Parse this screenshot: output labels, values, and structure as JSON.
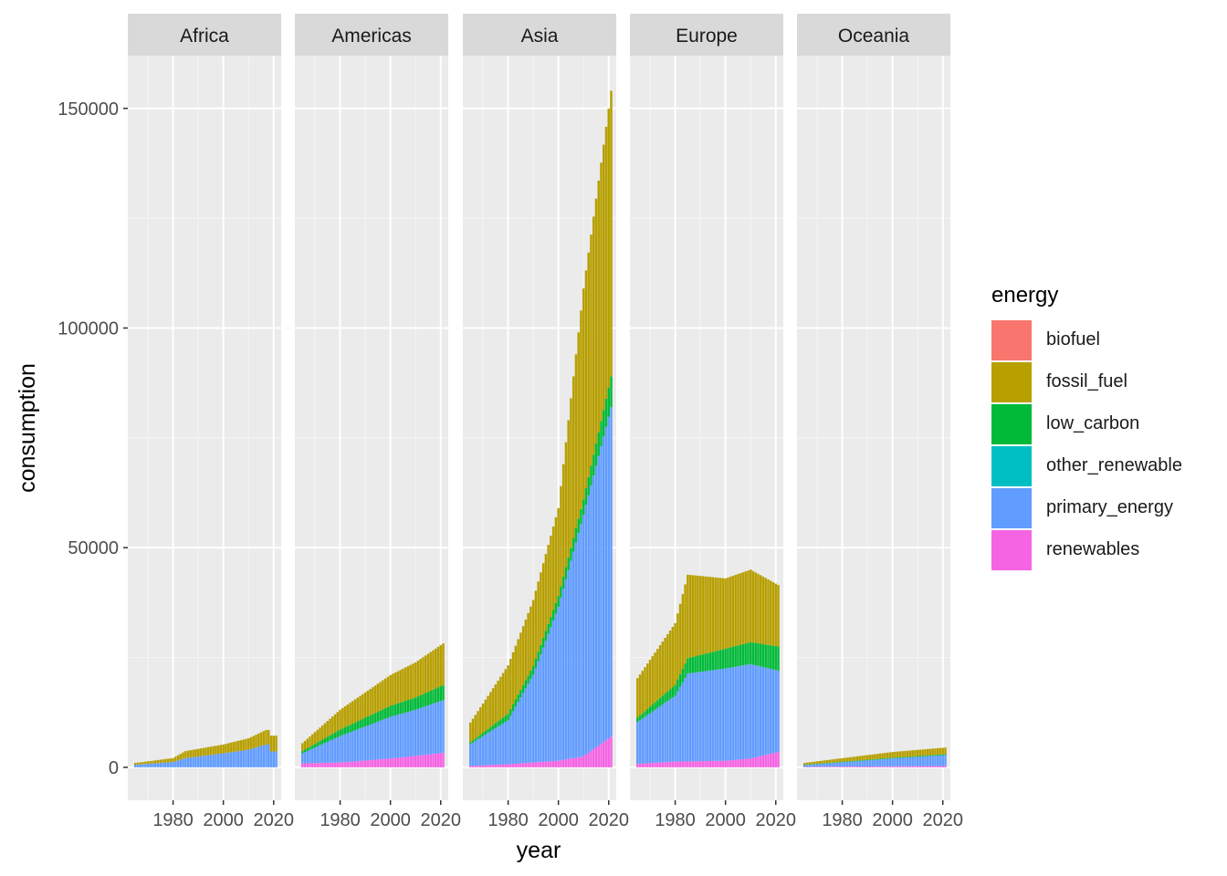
{
  "chart_data": {
    "type": "bar",
    "stacked": true,
    "faceted": true,
    "xlabel": "year",
    "ylabel": "consumption",
    "xticks": [
      1980,
      2000,
      2020
    ],
    "yticks": [
      0,
      50000,
      100000,
      150000
    ],
    "ylim": [
      -7500,
      162000
    ],
    "xlim": [
      1962,
      2023
    ],
    "year_range": [
      1965,
      2021
    ],
    "grid": true,
    "legend": {
      "title": "energy",
      "position": "right",
      "entries": [
        {
          "name": "biofuel",
          "color": "#F8766D"
        },
        {
          "name": "fossil_fuel",
          "color": "#B79F00"
        },
        {
          "name": "low_carbon",
          "color": "#00BA38"
        },
        {
          "name": "other_renewable",
          "color": "#00BFC4"
        },
        {
          "name": "primary_energy",
          "color": "#619CFF"
        },
        {
          "name": "renewables",
          "color": "#F564E3"
        }
      ]
    },
    "panels": [
      {
        "title": "Africa",
        "series": {
          "renewables": [
            [
              1965,
              0
            ],
            [
              2021,
              0
            ]
          ],
          "primary_energy": [
            [
              1965,
              600
            ],
            [
              1980,
              1200
            ],
            [
              1985,
              2100
            ],
            [
              2000,
              3200
            ],
            [
              2010,
              4000
            ],
            [
              2017,
              5200
            ],
            [
              2018,
              5200
            ],
            [
              2019,
              3600
            ],
            [
              2021,
              3600
            ]
          ],
          "low_carbon": [
            [
              1965,
              0
            ],
            [
              2021,
              0
            ]
          ],
          "fossil_fuel": [
            [
              1965,
              400
            ],
            [
              1980,
              900
            ],
            [
              1985,
              1600
            ],
            [
              2000,
              2000
            ],
            [
              2010,
              2600
            ],
            [
              2017,
              3300
            ],
            [
              2018,
              3300
            ],
            [
              2019,
              3600
            ],
            [
              2021,
              3600
            ]
          ]
        }
      },
      {
        "title": "Americas",
        "series": {
          "renewables": [
            [
              1965,
              900
            ],
            [
              1980,
              1100
            ],
            [
              2000,
              2000
            ],
            [
              2010,
              2600
            ],
            [
              2021,
              3300
            ]
          ],
          "primary_energy": [
            [
              1965,
              2300
            ],
            [
              1980,
              6000
            ],
            [
              2000,
              9500
            ],
            [
              2010,
              10500
            ],
            [
              2021,
              12000
            ]
          ],
          "low_carbon": [
            [
              1965,
              500
            ],
            [
              1980,
              1500
            ],
            [
              2000,
              2500
            ],
            [
              2010,
              2800
            ],
            [
              2021,
              3400
            ]
          ],
          "fossil_fuel": [
            [
              1965,
              1800
            ],
            [
              1980,
              4500
            ],
            [
              2000,
              7000
            ],
            [
              2010,
              8000
            ],
            [
              2021,
              9500
            ]
          ]
        }
      },
      {
        "title": "Asia",
        "series": {
          "renewables": [
            [
              1965,
              300
            ],
            [
              1980,
              700
            ],
            [
              2000,
              1500
            ],
            [
              2010,
              2500
            ],
            [
              2021,
              7000
            ]
          ],
          "primary_energy": [
            [
              1965,
              5000
            ],
            [
              1980,
              10000
            ],
            [
              1990,
              20000
            ],
            [
              2000,
              35000
            ],
            [
              2010,
              55000
            ],
            [
              2021,
              75000
            ]
          ],
          "low_carbon": [
            [
              1965,
              400
            ],
            [
              1980,
              1500
            ],
            [
              2000,
              2500
            ],
            [
              2010,
              3500
            ],
            [
              2021,
              7000
            ]
          ],
          "fossil_fuel": [
            [
              1965,
              4500
            ],
            [
              1980,
              11000
            ],
            [
              1990,
              15000
            ],
            [
              2000,
              20000
            ],
            [
              2010,
              48000
            ],
            [
              2021,
              65000
            ]
          ]
        }
      },
      {
        "title": "Europe",
        "series": {
          "renewables": [
            [
              1965,
              800
            ],
            [
              1980,
              1300
            ],
            [
              2000,
              1500
            ],
            [
              2010,
              2000
            ],
            [
              2021,
              3500
            ]
          ],
          "primary_energy": [
            [
              1965,
              9500
            ],
            [
              1980,
              15000
            ],
            [
              1985,
              20000
            ],
            [
              2000,
              21000
            ],
            [
              2010,
              21500
            ],
            [
              2021,
              18500
            ]
          ],
          "low_carbon": [
            [
              1965,
              1000
            ],
            [
              1980,
              2500
            ],
            [
              1985,
              3500
            ],
            [
              2000,
              4500
            ],
            [
              2010,
              5000
            ],
            [
              2021,
              5500
            ]
          ],
          "fossil_fuel": [
            [
              1965,
              9000
            ],
            [
              1980,
              14000
            ],
            [
              1985,
              19000
            ],
            [
              2000,
              16000
            ],
            [
              2010,
              16500
            ],
            [
              2021,
              14000
            ]
          ]
        }
      },
      {
        "title": "Oceania",
        "series": {
          "renewables": [
            [
              1965,
              100
            ],
            [
              2021,
              300
            ]
          ],
          "primary_energy": [
            [
              1965,
              400
            ],
            [
              1980,
              1000
            ],
            [
              2000,
              1800
            ],
            [
              2021,
              2500
            ]
          ],
          "low_carbon": [
            [
              1965,
              100
            ],
            [
              2021,
              200
            ]
          ],
          "fossil_fuel": [
            [
              1965,
              400
            ],
            [
              1980,
              800
            ],
            [
              2000,
              1300
            ],
            [
              2021,
              1500
            ]
          ]
        }
      }
    ]
  }
}
